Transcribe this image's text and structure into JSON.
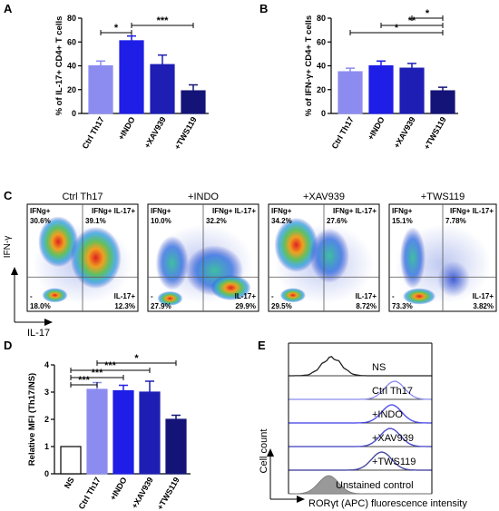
{
  "panels": {
    "A": {
      "letter": "A",
      "chart_data": {
        "type": "bar",
        "categories": [
          "Ctrl Th17",
          "+INDO",
          "+XAV939",
          "+TWS119"
        ],
        "values": [
          40,
          61,
          41,
          19
        ],
        "errors": [
          4,
          4,
          8,
          5
        ],
        "colors": [
          "#8c8cf0",
          "#1e1ee6",
          "#1e1eb4",
          "#141478"
        ],
        "ylabel": "% of IL-17+ CD4+ T cells",
        "ylim": [
          0,
          80
        ],
        "yticks": [
          "0",
          "20",
          "40",
          "60",
          "80"
        ],
        "significance": [
          {
            "from": 0,
            "to": 1,
            "label": "*"
          },
          {
            "from": 1,
            "to": 3,
            "label": "***"
          }
        ]
      }
    },
    "B": {
      "letter": "B",
      "chart_data": {
        "type": "bar",
        "categories": [
          "Ctrl Th17",
          "+INDO",
          "+XAV939",
          "+TWS119"
        ],
        "values": [
          35,
          40,
          38,
          19
        ],
        "errors": [
          3,
          4,
          4,
          3
        ],
        "colors": [
          "#8c8cf0",
          "#1e1ee6",
          "#1e1eb4",
          "#141478"
        ],
        "ylabel": "% of IFN-γ+ CD4+ T cells",
        "ylim": [
          0,
          80
        ],
        "yticks": [
          "0",
          "20",
          "40",
          "60",
          "80"
        ],
        "significance": [
          {
            "from": 0,
            "to": 3,
            "label": "*"
          },
          {
            "from": 1,
            "to": 3,
            "label": "**"
          },
          {
            "from": 2,
            "to": 3,
            "label": "*"
          }
        ]
      }
    },
    "C": {
      "letter": "C",
      "x_axis_label": "IL-17",
      "y_axis_label": "IFN-γ",
      "plots": [
        {
          "title": "Ctrl Th17",
          "q_tl_name": "IFNg+",
          "q_tl": "30.6%",
          "q_tr_name": "IFNg+ IL-17+",
          "q_tr": "39.1%",
          "q_bl_name": "-",
          "q_bl": "18.0%",
          "q_br_name": "IL-17+",
          "q_br": "12.3%"
        },
        {
          "title": "+INDO",
          "q_tl_name": "IFNg+",
          "q_tl": "10.0%",
          "q_tr_name": "IFNg+ IL-17+",
          "q_tr": "32.2%",
          "q_bl_name": "-",
          "q_bl": "27.9%",
          "q_br_name": "IL-17+",
          "q_br": "29.9%"
        },
        {
          "title": "+XAV939",
          "q_tl_name": "IFNg+",
          "q_tl": "34.2%",
          "q_tr_name": "IFNg+ IL-17+",
          "q_tr": "27.6%",
          "q_bl_name": "-",
          "q_bl": "29.5%",
          "q_br_name": "IL-17+",
          "q_br": "8.72%"
        },
        {
          "title": "+TWS119",
          "q_tl_name": "IFNg+",
          "q_tl": "15.1%",
          "q_tr_name": "IFNg+ IL-17+",
          "q_tr": "7.78%",
          "q_bl_name": "-",
          "q_bl": "73.3%",
          "q_br_name": "IL-17+",
          "q_br": "3.82%"
        }
      ]
    },
    "D": {
      "letter": "D",
      "chart_data": {
        "type": "bar",
        "categories": [
          "NS",
          "Ctrl Th17",
          "+INDO",
          "+XAV939",
          "+TWS119"
        ],
        "values": [
          1.0,
          3.1,
          3.05,
          3.0,
          2.0
        ],
        "errors": [
          0,
          0.25,
          0.2,
          0.4,
          0.15
        ],
        "colors": [
          "#ffffff",
          "#8c8cf0",
          "#1e1ee6",
          "#1e1eb4",
          "#141478"
        ],
        "ylabel": "Relative MFI (Th17/NS)",
        "ylim": [
          0,
          4
        ],
        "yticks": [
          "0",
          "1",
          "2",
          "3",
          "4"
        ],
        "significance": [
          {
            "from": 0,
            "to": 1,
            "label": "***"
          },
          {
            "from": 0,
            "to": 2,
            "label": "***"
          },
          {
            "from": 0,
            "to": 3,
            "label": "***"
          },
          {
            "from": 1,
            "to": 4,
            "label": "*"
          }
        ]
      }
    },
    "E": {
      "letter": "E",
      "y_axis_label": "Cell count",
      "x_axis_label": "RORγt (APC) fluorescence intensity",
      "tracks": [
        {
          "label": "NS",
          "peak": 0.3,
          "color": "#222222"
        },
        {
          "label": "Ctrl Th17",
          "peak": 0.74,
          "color": "#8c8cf0"
        },
        {
          "label": "+INDO",
          "peak": 0.72,
          "color": "#1e1ee6"
        },
        {
          "label": "+XAV939",
          "peak": 0.71,
          "color": "#1e1eb4"
        },
        {
          "label": "+TWS119",
          "peak": 0.65,
          "color": "#141478"
        },
        {
          "label": "Unstained control",
          "peak": 0.28,
          "color": "#999999"
        }
      ]
    }
  }
}
